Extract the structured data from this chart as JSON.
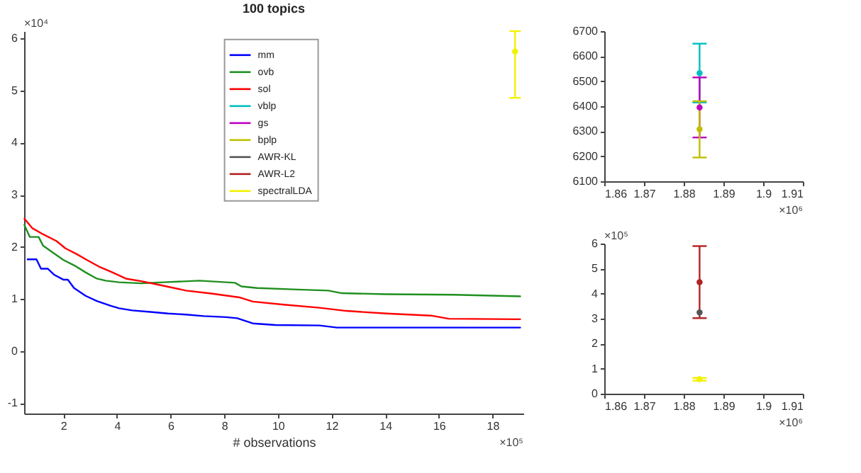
{
  "chart_data": [
    {
      "type": "line",
      "title": "100 topics",
      "xlabel": "# observations",
      "annotations": [
        "×10⁴",
        "×10⁵"
      ],
      "xlim": [
        0.54,
        19.15
      ],
      "xticks": [
        2,
        4,
        6,
        8,
        10,
        12,
        14,
        16,
        18
      ],
      "ylim": [
        -1.2,
        6.14
      ],
      "yticks": [
        -1,
        0,
        1,
        2,
        3,
        4,
        5,
        6
      ],
      "grid": false,
      "legend": "top",
      "marker": "none",
      "line_style": "solid",
      "series": [
        {
          "name": "mm",
          "color": "#0000ff",
          "x": [
            0.67,
            1.0,
            1.17,
            1.42,
            1.67,
            2.0,
            2.17,
            2.4,
            2.83,
            3.25,
            3.75,
            4.08,
            4.57,
            5.24,
            5.9,
            6.57,
            7.23,
            8.06,
            8.48,
            9.06,
            9.9,
            11.55,
            12.2,
            14.87,
            19.03
          ],
          "values": [
            1.76,
            1.76,
            1.58,
            1.58,
            1.46,
            1.37,
            1.37,
            1.21,
            1.06,
            0.96,
            0.87,
            0.82,
            0.78,
            0.75,
            0.72,
            0.7,
            0.67,
            0.65,
            0.63,
            0.53,
            0.5,
            0.49,
            0.45,
            0.45,
            0.45
          ]
        },
        {
          "name": "ovb",
          "color": "#1f8f1f",
          "x": [
            0.55,
            0.75,
            1.08,
            1.25,
            1.67,
            2.0,
            2.42,
            2.83,
            3.25,
            3.58,
            4.08,
            4.9,
            5.74,
            7.07,
            8.4,
            8.64,
            9.22,
            10.72,
            11.88,
            12.38,
            14.04,
            16.53,
            19.03
          ],
          "values": [
            2.42,
            2.19,
            2.19,
            2.02,
            1.87,
            1.75,
            1.64,
            1.51,
            1.39,
            1.35,
            1.32,
            1.3,
            1.32,
            1.35,
            1.31,
            1.24,
            1.21,
            1.18,
            1.16,
            1.11,
            1.09,
            1.08,
            1.05
          ]
        },
        {
          "name": "sol",
          "color": "#ff0000",
          "x": [
            0.55,
            0.84,
            1.25,
            1.75,
            2.08,
            2.5,
            2.91,
            3.33,
            3.83,
            4.33,
            4.91,
            5.57,
            6.57,
            7.56,
            8.56,
            9.06,
            10.22,
            11.55,
            12.55,
            14.04,
            15.7,
            16.37,
            19.03
          ],
          "values": [
            2.54,
            2.36,
            2.24,
            2.11,
            1.97,
            1.86,
            1.74,
            1.62,
            1.51,
            1.39,
            1.34,
            1.27,
            1.16,
            1.1,
            1.03,
            0.95,
            0.89,
            0.83,
            0.77,
            0.72,
            0.68,
            0.62,
            0.61
          ]
        },
        {
          "name": "vblp",
          "color": "#00bfbf",
          "type": "scatter"
        },
        {
          "name": "gs",
          "color": "#bf00bf",
          "type": "scatter"
        },
        {
          "name": "bplp",
          "color": "#bfbf00",
          "type": "scatter"
        },
        {
          "name": "AWR-KL",
          "color": "#555555",
          "type": "scatter"
        },
        {
          "name": "AWR-L2",
          "color": "#b22222",
          "type": "scatter"
        },
        {
          "name": "spectralLDA",
          "color": "#f2f200",
          "type": "scatter",
          "marker": "circle",
          "x": [
            18.84
          ],
          "values": [
            5.75
          ],
          "errors": [
            [
              4.86,
              6.14
            ]
          ]
        }
      ]
    },
    {
      "type": "scatter",
      "annotations": [
        "×10⁶"
      ],
      "xlim": [
        1.86,
        1.91
      ],
      "xticks": [
        1.86,
        1.87,
        1.88,
        1.89,
        1.9,
        1.91
      ],
      "ylim": [
        6100,
        6700
      ],
      "yticks": [
        6100,
        6200,
        6300,
        6400,
        6500,
        6600,
        6700
      ],
      "grid": false,
      "legend": false,
      "series": [
        {
          "color": "#00bfbf",
          "x": [
            1.884
          ],
          "values": [
            6532
          ],
          "errors": [
            [
              6415,
              6650
            ]
          ]
        },
        {
          "color": "#bf00bf",
          "x": [
            1.884
          ],
          "values": [
            6395
          ],
          "errors": [
            [
              6275,
              6515
            ]
          ]
        },
        {
          "color": "#bfbf00",
          "x": [
            1.884
          ],
          "values": [
            6308
          ],
          "errors": [
            [
              6195,
              6420
            ]
          ]
        }
      ]
    },
    {
      "type": "scatter",
      "annotations": [
        "×10⁵",
        "×10⁶"
      ],
      "xlim": [
        1.86,
        1.91
      ],
      "xticks": [
        1.86,
        1.87,
        1.88,
        1.89,
        1.9,
        1.91
      ],
      "ylim": [
        0,
        6
      ],
      "yticks": [
        0,
        1,
        2,
        3,
        4,
        5,
        6
      ],
      "grid": false,
      "legend": false,
      "series": [
        {
          "color": "#555555",
          "x": [
            1.884
          ],
          "values": [
            3.25
          ]
        },
        {
          "color": "#b22222",
          "x": [
            1.884
          ],
          "values": [
            4.46
          ],
          "errors": [
            [
              3.02,
              5.9
            ]
          ]
        },
        {
          "color": "#f2f200",
          "x": [
            1.884
          ],
          "values": [
            0.58
          ],
          "errors": [
            [
              0.52,
              0.63
            ]
          ]
        }
      ]
    }
  ]
}
